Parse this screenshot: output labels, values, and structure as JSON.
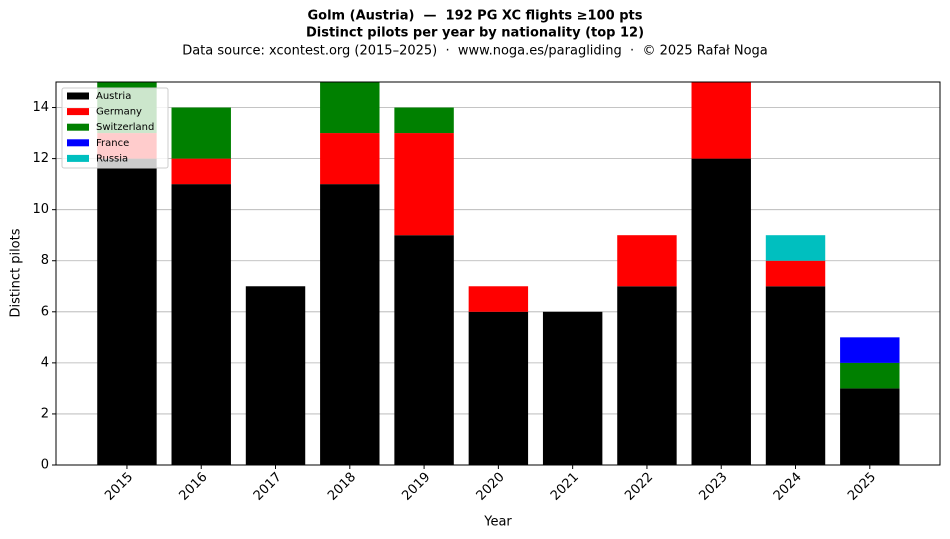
{
  "chart_data": {
    "type": "stacked_bar",
    "title": [
      "Golm (Austria)  —  192 PG XC flights ≥100 pts",
      "Distinct pilots per year by nationality (top 12)"
    ],
    "subtitle": "Data source: xcontest.org (2015–2025)  ·  www.noga.es/paragliding  ·  © 2025 Rafał Noga",
    "x_label": "Year",
    "y_label": "Distinct pilots",
    "categories": [
      "2015",
      "2016",
      "2017",
      "2018",
      "2019",
      "2020",
      "2021",
      "2022",
      "2023",
      "2024",
      "2025"
    ],
    "series": [
      {
        "name": "Austria",
        "color": "#000000",
        "values": [
          12,
          11,
          7,
          11,
          9,
          6,
          6,
          7,
          12,
          7,
          3
        ]
      },
      {
        "name": "Germany",
        "color": "#ff0000",
        "values": [
          1,
          1,
          0,
          2,
          4,
          1,
          0,
          2,
          3,
          1,
          0
        ]
      },
      {
        "name": "Switzerland",
        "color": "#008000",
        "values": [
          2,
          2,
          0,
          2,
          1,
          0,
          0,
          0,
          0,
          0,
          1
        ]
      },
      {
        "name": "France",
        "color": "#0000ff",
        "values": [
          0,
          0,
          0,
          0,
          0,
          0,
          0,
          0,
          0,
          0,
          1
        ]
      },
      {
        "name": "Russia",
        "color": "#00bfbf",
        "values": [
          0,
          0,
          0,
          0,
          0,
          0,
          0,
          0,
          0,
          1,
          0
        ]
      }
    ],
    "ylim": [
      0,
      15
    ],
    "yticks": [
      0,
      2,
      4,
      6,
      8,
      10,
      12,
      14
    ],
    "grid": true,
    "legend": "upper left"
  }
}
